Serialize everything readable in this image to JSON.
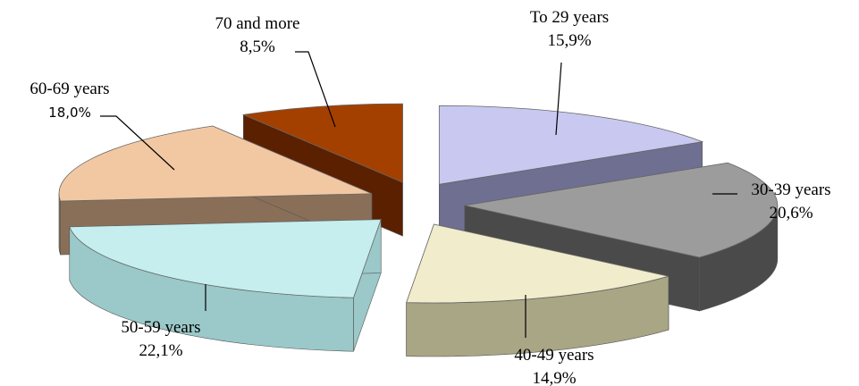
{
  "chart_data": {
    "type": "pie",
    "style": "3d-exploded",
    "categories": [
      "To 29 years",
      "30-39 years",
      "40-49 years",
      "50-59 years",
      "60-69 years",
      "70 and more"
    ],
    "values": [
      15.9,
      20.6,
      14.9,
      22.1,
      18.0,
      8.5
    ],
    "value_labels": [
      "15,9%",
      "20,6%",
      "14,9%",
      "22,1%",
      "18,0%",
      "8,5%"
    ],
    "colors": [
      "#c8c8f0",
      "#9c9c9c",
      "#f0eccc",
      "#c6eeee",
      "#f2c8a2",
      "#a34000"
    ],
    "side_colors": [
      "#6f6f92",
      "#4a4a4a",
      "#a8a684",
      "#9bc8c8",
      "#8a6f58",
      "#5a2000"
    ],
    "title": "",
    "legend": "none"
  }
}
